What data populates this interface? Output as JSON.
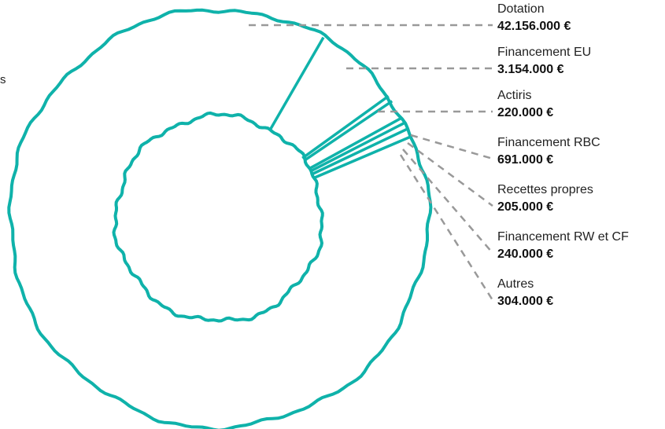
{
  "cut_text": "s",
  "colors": {
    "ring": "#0fb2aa",
    "leader": "#999999",
    "background": "#ffffff"
  },
  "chart_data": {
    "type": "pie",
    "donut": true,
    "slices": [
      {
        "label": "Dotation",
        "value": 42156000,
        "value_text": "42.156.000 €"
      },
      {
        "label": "Financement EU",
        "value": 3154000,
        "value_text": "3.154.000 €"
      },
      {
        "label": "Actiris",
        "value": 220000,
        "value_text": "220.000 €"
      },
      {
        "label": "Financement RBC",
        "value": 691000,
        "value_text": "691.000 €"
      },
      {
        "label": "Recettes propres",
        "value": 205000,
        "value_text": "205.000 €"
      },
      {
        "label": "Financement RW et CF",
        "value": 240000,
        "value_text": "240.000 €"
      },
      {
        "label": "Autres",
        "value": 304000,
        "value_text": "304.000 €"
      }
    ]
  }
}
